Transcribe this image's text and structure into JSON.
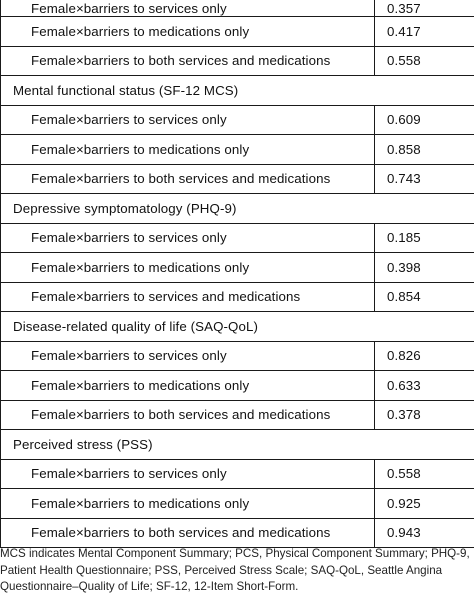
{
  "table": {
    "sections": [
      {
        "title": "",
        "rows": [
          {
            "label": "Female×barriers to services only",
            "value": "0.357"
          },
          {
            "label": "Female×barriers to medications only",
            "value": "0.417"
          },
          {
            "label": "Female×barriers to both services and medications",
            "value": "0.558"
          }
        ]
      },
      {
        "title": "Mental functional status (SF-12 MCS)",
        "rows": [
          {
            "label": "Female×barriers to services only",
            "value": "0.609"
          },
          {
            "label": "Female×barriers to medications only",
            "value": "0.858"
          },
          {
            "label": "Female×barriers to both services and medications",
            "value": "0.743"
          }
        ]
      },
      {
        "title": "Depressive symptomatology (PHQ-9)",
        "rows": [
          {
            "label": "Female×barriers to services only",
            "value": "0.185"
          },
          {
            "label": "Female×barriers to medications only",
            "value": "0.398"
          },
          {
            "label": "Female×barriers to services and medications",
            "value": "0.854"
          }
        ]
      },
      {
        "title": "Disease-related quality of life (SAQ-QoL)",
        "rows": [
          {
            "label": "Female×barriers to services only",
            "value": "0.826"
          },
          {
            "label": "Female×barriers to medications only",
            "value": "0.633"
          },
          {
            "label": "Female×barriers to both services and medications",
            "value": "0.378"
          }
        ]
      },
      {
        "title": "Perceived stress (PSS)",
        "rows": [
          {
            "label": "Female×barriers to services only",
            "value": "0.558"
          },
          {
            "label": "Female×barriers to medications only",
            "value": "0.925"
          },
          {
            "label": "Female×barriers to both services and medications",
            "value": "0.943"
          }
        ]
      }
    ]
  },
  "footnote": "MCS indicates Mental Component Summary; PCS, Physical Component Summary; PHQ-9, Patient Health Questionnaire; PSS, Perceived Stress Scale; SAQ-QoL, Seattle Angina Questionnaire–Quality of Life; SF-12, 12-Item Short-Form."
}
